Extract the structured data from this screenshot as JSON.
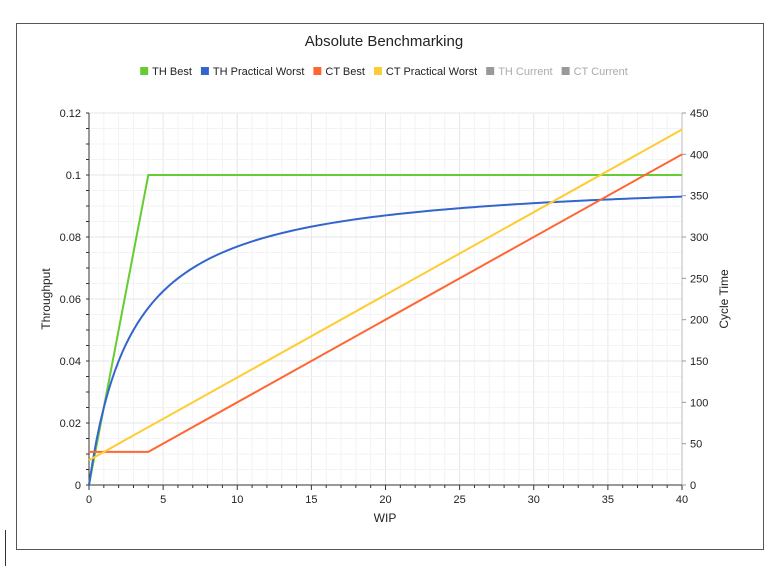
{
  "chart_data": {
    "type": "line",
    "title": "Absolute Benchmarking",
    "xlabel": "WIP",
    "ylabel_left": "Throughput",
    "ylabel_right": "Cycle Time",
    "xlim": [
      0,
      40
    ],
    "ylim_left": [
      0,
      0.12
    ],
    "ylim_right": [
      0,
      450
    ],
    "x_ticks": [
      "0",
      "5",
      "10",
      "15",
      "20",
      "25",
      "30",
      "35",
      "40"
    ],
    "y_left_ticks": [
      "0",
      "0.02",
      "0.04",
      "0.06",
      "0.08",
      "0.1",
      "0.12"
    ],
    "y_right_ticks": [
      "0",
      "50",
      "100",
      "150",
      "200",
      "250",
      "300",
      "350",
      "400",
      "450"
    ],
    "grid": true,
    "legend_position": "top",
    "series": [
      {
        "name": "TH Best",
        "axis": "left",
        "color": "#66cc33",
        "x": [
          0,
          4,
          40
        ],
        "y": [
          0,
          0.1,
          0.1
        ]
      },
      {
        "name": "TH Practical Worst",
        "axis": "left",
        "color": "#3366cc",
        "formula_points": {
          "x": [
            0,
            1,
            2,
            3,
            4,
            5,
            6,
            8,
            10,
            12,
            15,
            20,
            25,
            30,
            35,
            40
          ],
          "y": [
            0,
            0.025,
            0.04,
            0.05,
            0.0571,
            0.0625,
            0.0667,
            0.0727,
            0.0769,
            0.08,
            0.0833,
            0.087,
            0.0893,
            0.0909,
            0.0921,
            0.093
          ]
        }
      },
      {
        "name": "CT Best",
        "axis": "right",
        "color": "#ff6633",
        "x": [
          0,
          4,
          40
        ],
        "y": [
          40,
          40,
          400
        ]
      },
      {
        "name": "CT Practical Worst",
        "axis": "right",
        "color": "#ffcc33",
        "x": [
          0,
          40
        ],
        "y": [
          30,
          430
        ]
      },
      {
        "name": "TH Current",
        "axis": "left",
        "color": "#999999",
        "hidden": true,
        "x": [],
        "y": []
      },
      {
        "name": "CT Current",
        "axis": "right",
        "color": "#999999",
        "hidden": true,
        "x": [],
        "y": []
      }
    ]
  }
}
